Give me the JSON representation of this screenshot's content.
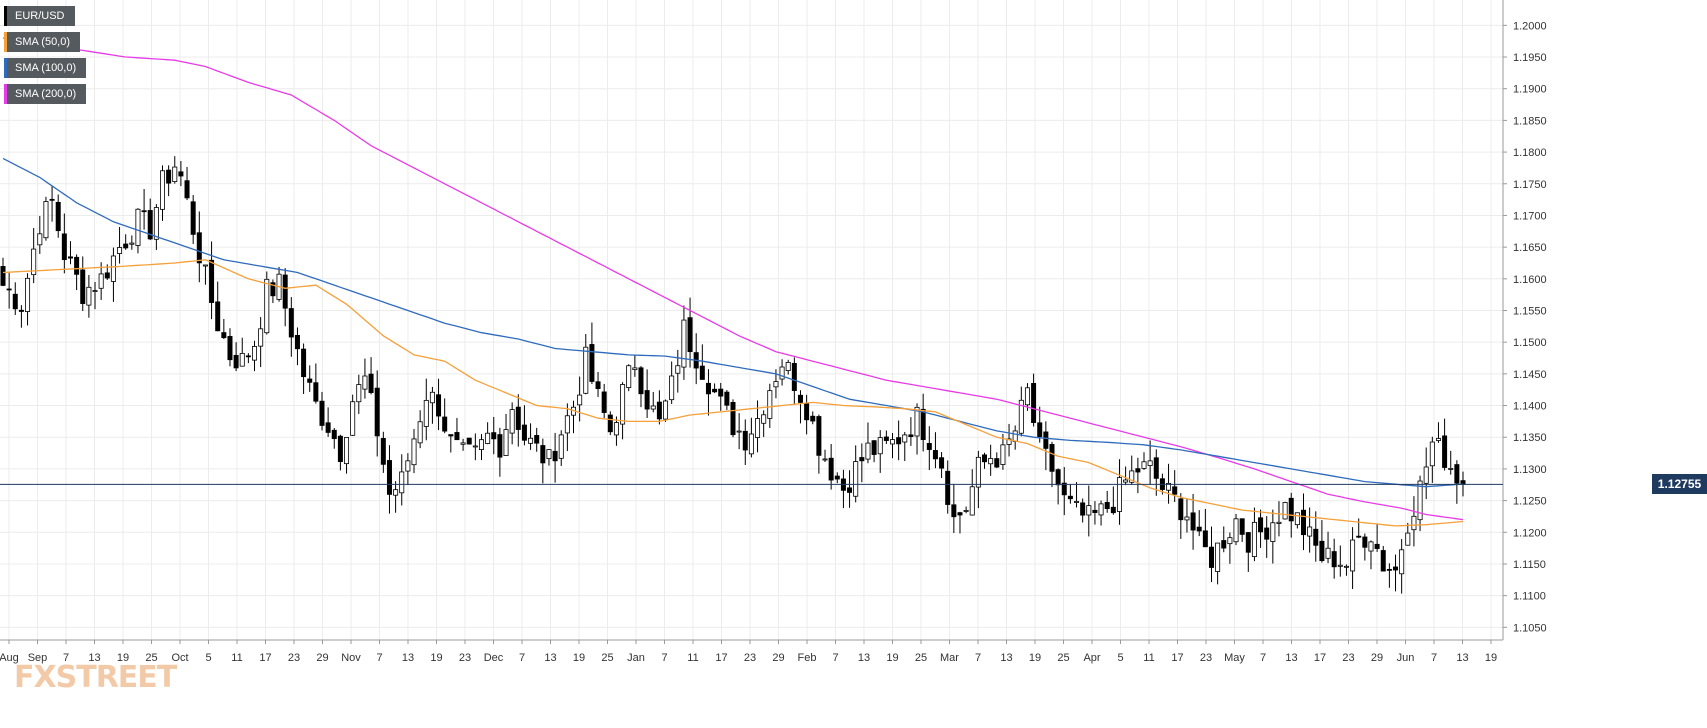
{
  "colors": {
    "background": "#ffffff",
    "grid": "#ececec",
    "candle_up": "#ffffff",
    "candle_down": "#000000",
    "wick": "#000000",
    "sma50": "#f5a03a",
    "sma100": "#2f6bbd",
    "sma200": "#e83be8",
    "current_line": "#1f3a5f",
    "logo": "#f0b98a"
  },
  "legend": [
    {
      "label": "EUR/USD",
      "color": "#000000"
    },
    {
      "label": "SMA (50,0)",
      "color": "#f5a03a"
    },
    {
      "label": "SMA (100,0)",
      "color": "#2f6bbd"
    },
    {
      "label": "SMA (200,0)",
      "color": "#e83be8"
    }
  ],
  "logo_text": "FXSTREET",
  "current_price_label": "1.12755",
  "chart_data": {
    "type": "candlestick",
    "instrument": "EUR/USD",
    "timeframe": "daily",
    "ylim": [
      1.103,
      1.204
    ],
    "y_ticks": [
      "1.1050",
      "1.1100",
      "1.1150",
      "1.1200",
      "1.1250",
      "1.1300",
      "1.1350",
      "1.1400",
      "1.1450",
      "1.1500",
      "1.1550",
      "1.1600",
      "1.1650",
      "1.1700",
      "1.1750",
      "1.1800",
      "1.1850",
      "1.1900",
      "1.1950",
      "1.2000"
    ],
    "x_ticks": [
      "Aug",
      "Sep",
      "7",
      "13",
      "19",
      "25",
      "Oct",
      "5",
      "11",
      "17",
      "23",
      "29",
      "Nov",
      "7",
      "13",
      "19",
      "23",
      "Dec",
      "7",
      "13",
      "19",
      "25",
      "Jan",
      "7",
      "11",
      "17",
      "23",
      "29",
      "Feb",
      "7",
      "13",
      "19",
      "25",
      "Mar",
      "7",
      "13",
      "19",
      "25",
      "Apr",
      "5",
      "11",
      "17",
      "23",
      "May",
      "7",
      "13",
      "17",
      "23",
      "29",
      "Jun",
      "7",
      "13",
      "19"
    ],
    "current_price": 1.12755,
    "grid": true,
    "legend_position": "top-left",
    "series_names": [
      "EUR/USD",
      "SMA (50,0)",
      "SMA (100,0)",
      "SMA (200,0)"
    ],
    "close_waypoints": [
      [
        0,
        1.159
      ],
      [
        3,
        1.156
      ],
      [
        6,
        1.169
      ],
      [
        8,
        1.172
      ],
      [
        10,
        1.164
      ],
      [
        13,
        1.158
      ],
      [
        16,
        1.16
      ],
      [
        19,
        1.165
      ],
      [
        22,
        1.169
      ],
      [
        24,
        1.168
      ],
      [
        26,
        1.175
      ],
      [
        28,
        1.178
      ],
      [
        29,
        1.176
      ],
      [
        31,
        1.168
      ],
      [
        33,
        1.16
      ],
      [
        35,
        1.153
      ],
      [
        37,
        1.148
      ],
      [
        39,
        1.147
      ],
      [
        41,
        1.15
      ],
      [
        43,
        1.158
      ],
      [
        45,
        1.159
      ],
      [
        47,
        1.152
      ],
      [
        49,
        1.145
      ],
      [
        51,
        1.14
      ],
      [
        53,
        1.137
      ],
      [
        55,
        1.133
      ],
      [
        57,
        1.141
      ],
      [
        59,
        1.144
      ],
      [
        61,
        1.136
      ],
      [
        63,
        1.126
      ],
      [
        65,
        1.128
      ],
      [
        67,
        1.135
      ],
      [
        69,
        1.142
      ],
      [
        71,
        1.14
      ],
      [
        73,
        1.134
      ],
      [
        75,
        1.132
      ],
      [
        77,
        1.132
      ],
      [
        79,
        1.135
      ],
      [
        81,
        1.134
      ],
      [
        83,
        1.14
      ],
      [
        85,
        1.135
      ],
      [
        87,
        1.133
      ],
      [
        89,
        1.131
      ],
      [
        91,
        1.136
      ],
      [
        93,
        1.14
      ],
      [
        95,
        1.147
      ],
      [
        97,
        1.141
      ],
      [
        99,
        1.136
      ],
      [
        101,
        1.142
      ],
      [
        103,
        1.147
      ],
      [
        105,
        1.141
      ],
      [
        107,
        1.137
      ],
      [
        109,
        1.143
      ],
      [
        111,
        1.152
      ],
      [
        113,
        1.148
      ],
      [
        115,
        1.144
      ],
      [
        117,
        1.14
      ],
      [
        119,
        1.137
      ],
      [
        121,
        1.135
      ],
      [
        123,
        1.138
      ],
      [
        125,
        1.143
      ],
      [
        127,
        1.147
      ],
      [
        129,
        1.144
      ],
      [
        131,
        1.14
      ],
      [
        133,
        1.134
      ],
      [
        135,
        1.13
      ],
      [
        137,
        1.127
      ],
      [
        139,
        1.13
      ],
      [
        141,
        1.133
      ],
      [
        143,
        1.133
      ],
      [
        145,
        1.134
      ],
      [
        147,
        1.136
      ],
      [
        149,
        1.138
      ],
      [
        151,
        1.135
      ],
      [
        153,
        1.131
      ],
      [
        155,
        1.122
      ],
      [
        157,
        1.124
      ],
      [
        159,
        1.13
      ],
      [
        161,
        1.132
      ],
      [
        163,
        1.132
      ],
      [
        165,
        1.136
      ],
      [
        167,
        1.142
      ],
      [
        169,
        1.133
      ],
      [
        171,
        1.13
      ],
      [
        173,
        1.125
      ],
      [
        175,
        1.123
      ],
      [
        177,
        1.122
      ],
      [
        179,
        1.123
      ],
      [
        181,
        1.125
      ],
      [
        183,
        1.128
      ],
      [
        185,
        1.13
      ],
      [
        187,
        1.13
      ],
      [
        189,
        1.127
      ],
      [
        191,
        1.125
      ],
      [
        193,
        1.123
      ],
      [
        195,
        1.118
      ],
      [
        197,
        1.116
      ],
      [
        199,
        1.119
      ],
      [
        201,
        1.122
      ],
      [
        203,
        1.119
      ],
      [
        205,
        1.12
      ],
      [
        207,
        1.122
      ],
      [
        209,
        1.124
      ],
      [
        211,
        1.122
      ],
      [
        213,
        1.119
      ],
      [
        215,
        1.116
      ],
      [
        217,
        1.116
      ],
      [
        219,
        1.115
      ],
      [
        221,
        1.119
      ],
      [
        223,
        1.12
      ],
      [
        225,
        1.115
      ],
      [
        227,
        1.114
      ],
      [
        229,
        1.122
      ],
      [
        231,
        1.127
      ],
      [
        233,
        1.134
      ],
      [
        235,
        1.132
      ],
      [
        237,
        1.129
      ],
      [
        238,
        1.1276
      ]
    ],
    "sma50_waypoints": [
      [
        0,
        1.161
      ],
      [
        10,
        1.1615
      ],
      [
        20,
        1.162
      ],
      [
        28,
        1.1625
      ],
      [
        33,
        1.163
      ],
      [
        40,
        1.16
      ],
      [
        46,
        1.1585
      ],
      [
        51,
        1.159
      ],
      [
        56,
        1.156
      ],
      [
        62,
        1.151
      ],
      [
        67,
        1.148
      ],
      [
        72,
        1.147
      ],
      [
        77,
        1.144
      ],
      [
        82,
        1.142
      ],
      [
        87,
        1.14
      ],
      [
        92,
        1.1395
      ],
      [
        97,
        1.138
      ],
      [
        102,
        1.1375
      ],
      [
        107,
        1.1375
      ],
      [
        112,
        1.1385
      ],
      [
        117,
        1.139
      ],
      [
        122,
        1.1395
      ],
      [
        127,
        1.14
      ],
      [
        132,
        1.1405
      ],
      [
        137,
        1.14
      ],
      [
        142,
        1.1398
      ],
      [
        147,
        1.1395
      ],
      [
        152,
        1.139
      ],
      [
        157,
        1.137
      ],
      [
        162,
        1.135
      ],
      [
        167,
        1.134
      ],
      [
        172,
        1.132
      ],
      [
        177,
        1.131
      ],
      [
        182,
        1.129
      ],
      [
        187,
        1.127
      ],
      [
        192,
        1.1255
      ],
      [
        197,
        1.1245
      ],
      [
        202,
        1.1235
      ],
      [
        207,
        1.123
      ],
      [
        212,
        1.1225
      ],
      [
        217,
        1.122
      ],
      [
        222,
        1.1215
      ],
      [
        227,
        1.121
      ],
      [
        232,
        1.1212
      ],
      [
        238,
        1.1217
      ]
    ],
    "sma100_waypoints": [
      [
        0,
        1.179
      ],
      [
        6,
        1.176
      ],
      [
        12,
        1.172
      ],
      [
        18,
        1.169
      ],
      [
        24,
        1.167
      ],
      [
        30,
        1.165
      ],
      [
        36,
        1.163
      ],
      [
        42,
        1.162
      ],
      [
        48,
        1.161
      ],
      [
        54,
        1.159
      ],
      [
        60,
        1.157
      ],
      [
        66,
        1.155
      ],
      [
        72,
        1.153
      ],
      [
        78,
        1.1515
      ],
      [
        84,
        1.1505
      ],
      [
        90,
        1.149
      ],
      [
        96,
        1.1485
      ],
      [
        102,
        1.148
      ],
      [
        108,
        1.1478
      ],
      [
        114,
        1.147
      ],
      [
        120,
        1.146
      ],
      [
        126,
        1.145
      ],
      [
        132,
        1.143
      ],
      [
        138,
        1.141
      ],
      [
        144,
        1.14
      ],
      [
        150,
        1.139
      ],
      [
        156,
        1.1375
      ],
      [
        162,
        1.136
      ],
      [
        168,
        1.135
      ],
      [
        174,
        1.1345
      ],
      [
        180,
        1.1342
      ],
      [
        186,
        1.1338
      ],
      [
        192,
        1.133
      ],
      [
        198,
        1.132
      ],
      [
        204,
        1.131
      ],
      [
        210,
        1.13
      ],
      [
        216,
        1.129
      ],
      [
        222,
        1.128
      ],
      [
        228,
        1.1275
      ],
      [
        232,
        1.1272
      ],
      [
        238,
        1.1276
      ]
    ],
    "sma200_waypoints": [
      [
        0,
        1.198
      ],
      [
        10,
        1.1965
      ],
      [
        20,
        1.195
      ],
      [
        28,
        1.1945
      ],
      [
        33,
        1.1935
      ],
      [
        40,
        1.191
      ],
      [
        47,
        1.189
      ],
      [
        54,
        1.185
      ],
      [
        60,
        1.181
      ],
      [
        66,
        1.178
      ],
      [
        72,
        1.175
      ],
      [
        78,
        1.172
      ],
      [
        84,
        1.169
      ],
      [
        90,
        1.166
      ],
      [
        96,
        1.163
      ],
      [
        102,
        1.16
      ],
      [
        108,
        1.157
      ],
      [
        114,
        1.154
      ],
      [
        120,
        1.151
      ],
      [
        126,
        1.1485
      ],
      [
        132,
        1.147
      ],
      [
        138,
        1.1455
      ],
      [
        144,
        1.144
      ],
      [
        150,
        1.143
      ],
      [
        156,
        1.142
      ],
      [
        162,
        1.141
      ],
      [
        168,
        1.1395
      ],
      [
        174,
        1.138
      ],
      [
        180,
        1.1365
      ],
      [
        186,
        1.135
      ],
      [
        192,
        1.1335
      ],
      [
        198,
        1.1318
      ],
      [
        204,
        1.13
      ],
      [
        210,
        1.128
      ],
      [
        216,
        1.126
      ],
      [
        222,
        1.1248
      ],
      [
        228,
        1.1238
      ],
      [
        232,
        1.1228
      ],
      [
        238,
        1.122
      ]
    ]
  }
}
